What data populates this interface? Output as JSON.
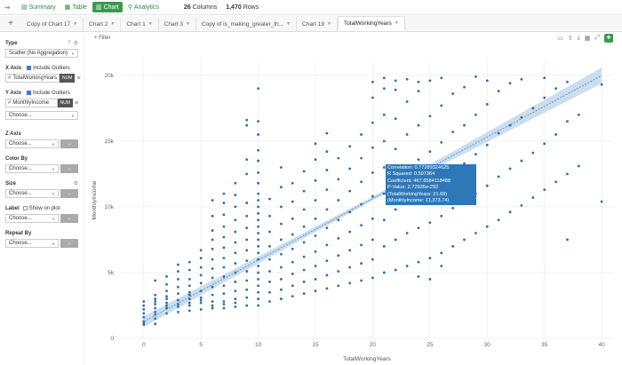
{
  "topbar": {
    "nav": [
      {
        "label": "Summary",
        "icon": "summary-icon"
      },
      {
        "label": "Table",
        "icon": "table-icon"
      },
      {
        "label": "Chart",
        "icon": "chart-icon",
        "active": true
      },
      {
        "label": "Analytics",
        "icon": "analytics-icon"
      }
    ],
    "columns_count": "26",
    "columns_label": "Columns",
    "rows_count": "1,470",
    "rows_label": "Rows"
  },
  "tabs": [
    {
      "label": "Copy of Chart 17"
    },
    {
      "label": "Chart 2"
    },
    {
      "label": "Chart 1"
    },
    {
      "label": "Chart 3"
    },
    {
      "label": "Copy of is_making_greater_th..."
    },
    {
      "label": "Chart 19"
    },
    {
      "label": "TotalWorkingYears",
      "active": true
    }
  ],
  "sidebar": {
    "type_label": "Type",
    "type_value": "Scatter (No Aggregation)",
    "xaxis_label": "X Axis",
    "xaxis_outliers": "Include Outliers",
    "xaxis_column": "TotalWorkingYears",
    "yaxis_label": "Y Axis",
    "yaxis_outliers": "Include Outliers",
    "yaxis_column": "MonthlyIncome",
    "num_badge": "NUM",
    "choose": "Choose...",
    "zaxis_label": "Z Axis",
    "colorby_label": "Color By",
    "size_label": "Size",
    "label_label": "Label",
    "label_show": "Show on plot",
    "repeatby_label": "Repeat By"
  },
  "filter_label": "Filter",
  "tooltip": {
    "lines": [
      "Correlation: 0.77289324625",
      "R Squared: 0.597364",
      "Coefficient: 467.6584118488",
      "P-Value: 2.72935e-292",
      "(TotalWorkingYears: 21.69)",
      "(MonthlyIncome: 11,373.74)"
    ]
  },
  "chart_data": {
    "type": "scatter",
    "xlabel": "TotalWorkingYears",
    "ylabel": "MonthlyIncome",
    "xlim": [
      -2,
      41
    ],
    "ylim": [
      0,
      21000
    ],
    "xticks": [
      0,
      5,
      10,
      15,
      20,
      25,
      30,
      35,
      40
    ],
    "yticks": [
      {
        "value": 0,
        "label": "0"
      },
      {
        "value": 5000,
        "label": "5k"
      },
      {
        "value": 10000,
        "label": "10k"
      },
      {
        "value": 15000,
        "label": "15k"
      },
      {
        "value": 20000,
        "label": "20k"
      }
    ],
    "grid": true,
    "point_color": "#2e6ea6",
    "trendline": {
      "x0": 0,
      "y0": 1277,
      "x1": 40,
      "y1": 19983,
      "color": "#4a86c5",
      "band_color": "#b9d3ea"
    },
    "points": [
      [
        0,
        1300
      ],
      [
        0,
        1600
      ],
      [
        0,
        1900
      ],
      [
        0,
        2200
      ],
      [
        0,
        2500
      ],
      [
        0,
        2800
      ],
      [
        0,
        1050
      ],
      [
        0,
        1200
      ],
      [
        1,
        1100
      ],
      [
        1,
        1500
      ],
      [
        1,
        2000
      ],
      [
        1,
        2300
      ],
      [
        1,
        2600
      ],
      [
        1,
        3000
      ],
      [
        1,
        3300
      ],
      [
        1,
        2800
      ],
      [
        1,
        1800
      ],
      [
        1,
        4400
      ],
      [
        2,
        1900
      ],
      [
        2,
        2300
      ],
      [
        2,
        2700
      ],
      [
        2,
        3200
      ],
      [
        2,
        3600
      ],
      [
        2,
        4100
      ],
      [
        2,
        4700
      ],
      [
        2,
        2500
      ],
      [
        2,
        3000
      ],
      [
        3,
        2000
      ],
      [
        3,
        2400
      ],
      [
        3,
        2900
      ],
      [
        3,
        3400
      ],
      [
        3,
        3900
      ],
      [
        3,
        4500
      ],
      [
        3,
        5100
      ],
      [
        3,
        2600
      ],
      [
        3,
        5600
      ],
      [
        4,
        2100
      ],
      [
        4,
        2500
      ],
      [
        4,
        3000
      ],
      [
        4,
        3500
      ],
      [
        4,
        4000
      ],
      [
        4,
        4500
      ],
      [
        4,
        5200
      ],
      [
        4,
        5800
      ],
      [
        4,
        2700
      ],
      [
        4,
        3300
      ],
      [
        5,
        2200
      ],
      [
        5,
        2700
      ],
      [
        5,
        3100
      ],
      [
        5,
        3600
      ],
      [
        5,
        4200
      ],
      [
        5,
        4800
      ],
      [
        5,
        5400
      ],
      [
        5,
        6100
      ],
      [
        5,
        6700
      ],
      [
        5,
        2900
      ],
      [
        6,
        2300
      ],
      [
        6,
        2800
      ],
      [
        6,
        3300
      ],
      [
        6,
        3900
      ],
      [
        6,
        4600
      ],
      [
        6,
        5300
      ],
      [
        6,
        6000
      ],
      [
        6,
        6800
      ],
      [
        6,
        7500
      ],
      [
        6,
        8200
      ],
      [
        6,
        2500
      ],
      [
        6,
        9300
      ],
      [
        6,
        10500
      ],
      [
        7,
        2300
      ],
      [
        7,
        2800
      ],
      [
        7,
        3400
      ],
      [
        7,
        4000
      ],
      [
        7,
        4700
      ],
      [
        7,
        5400
      ],
      [
        7,
        6100
      ],
      [
        7,
        6900
      ],
      [
        7,
        7700
      ],
      [
        7,
        8500
      ],
      [
        7,
        9400
      ],
      [
        7,
        10300
      ],
      [
        7,
        2600
      ],
      [
        7,
        11000
      ],
      [
        8,
        2400
      ],
      [
        8,
        3000
      ],
      [
        8,
        3600
      ],
      [
        8,
        4300
      ],
      [
        8,
        5000
      ],
      [
        8,
        5700
      ],
      [
        8,
        6500
      ],
      [
        8,
        7300
      ],
      [
        8,
        8100
      ],
      [
        8,
        9000
      ],
      [
        8,
        10000
      ],
      [
        8,
        10900
      ],
      [
        8,
        2700
      ],
      [
        8,
        11800
      ],
      [
        9,
        2500
      ],
      [
        9,
        3100
      ],
      [
        9,
        3700
      ],
      [
        9,
        4400
      ],
      [
        9,
        5100
      ],
      [
        9,
        5900
      ],
      [
        9,
        6700
      ],
      [
        9,
        7500
      ],
      [
        9,
        8400
      ],
      [
        9,
        9300
      ],
      [
        9,
        10300
      ],
      [
        9,
        12500
      ],
      [
        9,
        13600
      ],
      [
        9,
        16200
      ],
      [
        9,
        16600
      ],
      [
        10,
        2500
      ],
      [
        10,
        3000
      ],
      [
        10,
        3500
      ],
      [
        10,
        4000
      ],
      [
        10,
        4500
      ],
      [
        10,
        5000
      ],
      [
        10,
        5500
      ],
      [
        10,
        6000
      ],
      [
        10,
        6500
      ],
      [
        10,
        7000
      ],
      [
        10,
        7500
      ],
      [
        10,
        8000
      ],
      [
        10,
        8500
      ],
      [
        10,
        9000
      ],
      [
        10,
        9500
      ],
      [
        10,
        10000
      ],
      [
        10,
        10500
      ],
      [
        10,
        11000
      ],
      [
        10,
        11800
      ],
      [
        10,
        12600
      ],
      [
        10,
        13500
      ],
      [
        10,
        14300
      ],
      [
        10,
        15500
      ],
      [
        10,
        16500
      ],
      [
        10,
        19000
      ],
      [
        11,
        2800
      ],
      [
        11,
        3500
      ],
      [
        11,
        4300
      ],
      [
        11,
        5100
      ],
      [
        11,
        6000
      ],
      [
        11,
        7000
      ],
      [
        11,
        8100
      ],
      [
        11,
        9300
      ],
      [
        11,
        10600
      ],
      [
        12,
        3000
      ],
      [
        12,
        3700
      ],
      [
        12,
        4500
      ],
      [
        12,
        5400
      ],
      [
        12,
        6400
      ],
      [
        12,
        7500
      ],
      [
        12,
        8700
      ],
      [
        12,
        10000
      ],
      [
        12,
        11500
      ],
      [
        12,
        13000
      ],
      [
        13,
        3200
      ],
      [
        13,
        4000
      ],
      [
        13,
        4900
      ],
      [
        13,
        5800
      ],
      [
        13,
        6800
      ],
      [
        13,
        7900
      ],
      [
        13,
        9100
      ],
      [
        13,
        10400
      ],
      [
        13,
        11800
      ],
      [
        14,
        3400
      ],
      [
        14,
        4300
      ],
      [
        14,
        5200
      ],
      [
        14,
        6200
      ],
      [
        14,
        7300
      ],
      [
        14,
        8500
      ],
      [
        14,
        9800
      ],
      [
        14,
        11200
      ],
      [
        14,
        12700
      ],
      [
        15,
        3600
      ],
      [
        15,
        4500
      ],
      [
        15,
        5500
      ],
      [
        15,
        6600
      ],
      [
        15,
        7800
      ],
      [
        15,
        9100
      ],
      [
        15,
        10500
      ],
      [
        15,
        12000
      ],
      [
        15,
        13600
      ],
      [
        15,
        14800
      ],
      [
        16,
        3800
      ],
      [
        16,
        4800
      ],
      [
        16,
        5900
      ],
      [
        16,
        7100
      ],
      [
        16,
        8400
      ],
      [
        16,
        9800
      ],
      [
        16,
        11300
      ],
      [
        16,
        12800
      ],
      [
        16,
        14200
      ],
      [
        16,
        15600
      ],
      [
        17,
        4000
      ],
      [
        17,
        5100
      ],
      [
        17,
        6300
      ],
      [
        17,
        7600
      ],
      [
        17,
        9000
      ],
      [
        17,
        10500
      ],
      [
        17,
        12100
      ],
      [
        17,
        13700
      ],
      [
        18,
        4200
      ],
      [
        18,
        5400
      ],
      [
        18,
        6700
      ],
      [
        18,
        8100
      ],
      [
        18,
        9600
      ],
      [
        18,
        11200
      ],
      [
        18,
        12900
      ],
      [
        18,
        14600
      ],
      [
        19,
        4400
      ],
      [
        19,
        5700
      ],
      [
        19,
        7100
      ],
      [
        19,
        8600
      ],
      [
        19,
        10200
      ],
      [
        19,
        11900
      ],
      [
        19,
        13700
      ],
      [
        19,
        15500
      ],
      [
        20,
        4600
      ],
      [
        20,
        6000
      ],
      [
        20,
        7500
      ],
      [
        20,
        9100
      ],
      [
        20,
        10800
      ],
      [
        20,
        12600
      ],
      [
        20,
        14500
      ],
      [
        20,
        16400
      ],
      [
        20,
        18300
      ],
      [
        20,
        19500
      ],
      [
        21,
        5000
      ],
      [
        21,
        7000
      ],
      [
        21,
        9000
      ],
      [
        21,
        11000
      ],
      [
        21,
        13000
      ],
      [
        21,
        15000
      ],
      [
        21,
        17000
      ],
      [
        21,
        19000
      ],
      [
        21,
        19800
      ],
      [
        22,
        5200
      ],
      [
        22,
        7500
      ],
      [
        22,
        9800
      ],
      [
        22,
        12100
      ],
      [
        22,
        14400
      ],
      [
        22,
        16700
      ],
      [
        22,
        18900
      ],
      [
        22,
        19600
      ],
      [
        23,
        5500
      ],
      [
        23,
        8000
      ],
      [
        23,
        10500
      ],
      [
        23,
        13000
      ],
      [
        23,
        15500
      ],
      [
        23,
        18000
      ],
      [
        23,
        19700
      ],
      [
        24,
        5800
      ],
      [
        24,
        8400
      ],
      [
        24,
        11000
      ],
      [
        24,
        13600
      ],
      [
        24,
        16200
      ],
      [
        24,
        18800
      ],
      [
        24,
        4700
      ],
      [
        24,
        19500
      ],
      [
        25,
        6100
      ],
      [
        25,
        8800
      ],
      [
        25,
        11500
      ],
      [
        25,
        14200
      ],
      [
        25,
        16900
      ],
      [
        25,
        19600
      ],
      [
        25,
        4500
      ],
      [
        26,
        6500
      ],
      [
        26,
        9300
      ],
      [
        26,
        12100
      ],
      [
        26,
        14900
      ],
      [
        26,
        17700
      ],
      [
        26,
        19800
      ],
      [
        26,
        5500
      ],
      [
        27,
        7000
      ],
      [
        27,
        9900
      ],
      [
        27,
        12800
      ],
      [
        27,
        15700
      ],
      [
        27,
        18600
      ],
      [
        28,
        7500
      ],
      [
        28,
        10400
      ],
      [
        28,
        13300
      ],
      [
        28,
        16200
      ],
      [
        28,
        19100
      ],
      [
        29,
        8000
      ],
      [
        29,
        11000
      ],
      [
        29,
        14000
      ],
      [
        29,
        17000
      ],
      [
        29,
        19900
      ],
      [
        30,
        8500
      ],
      [
        30,
        11600
      ],
      [
        30,
        14700
      ],
      [
        30,
        17800
      ],
      [
        30,
        19600
      ],
      [
        31,
        9000
      ],
      [
        31,
        12300
      ],
      [
        31,
        15600
      ],
      [
        31,
        18800
      ],
      [
        32,
        9600
      ],
      [
        32,
        12900
      ],
      [
        32,
        16200
      ],
      [
        32,
        19400
      ],
      [
        33,
        10100
      ],
      [
        33,
        13500
      ],
      [
        33,
        16800
      ],
      [
        33,
        19700
      ],
      [
        34,
        10700
      ],
      [
        34,
        14100
      ],
      [
        34,
        17500
      ],
      [
        35,
        11300
      ],
      [
        35,
        14800
      ],
      [
        35,
        18300
      ],
      [
        35,
        19800
      ],
      [
        36,
        11900
      ],
      [
        36,
        15500
      ],
      [
        36,
        19000
      ],
      [
        37,
        7500
      ],
      [
        37,
        12500
      ],
      [
        37,
        16500
      ],
      [
        37,
        19500
      ],
      [
        38,
        13100
      ],
      [
        38,
        17000
      ],
      [
        40,
        10400
      ],
      [
        40,
        19300
      ]
    ]
  }
}
